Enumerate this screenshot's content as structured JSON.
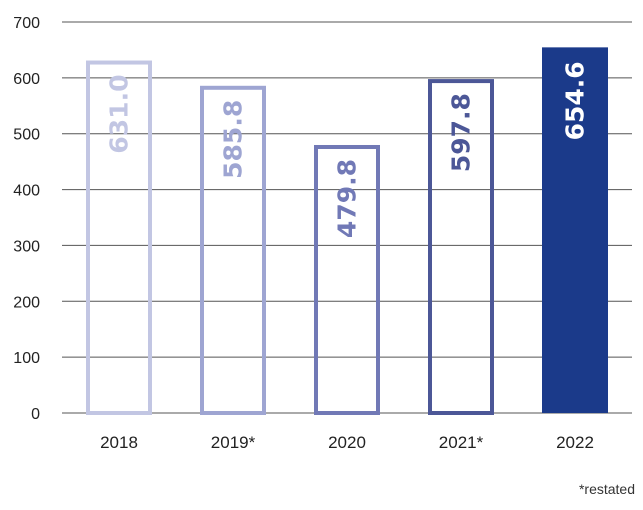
{
  "chart_data": {
    "type": "bar",
    "categories": [
      "2018",
      "2019*",
      "2020",
      "2021*",
      "2022"
    ],
    "values": [
      631.0,
      585.8,
      479.8,
      597.8,
      654.6
    ],
    "value_labels": [
      "631.0",
      "585.8",
      "479.8",
      "597.8",
      "654.6"
    ],
    "title": "",
    "xlabel": "",
    "ylabel": "",
    "ylim": [
      0,
      700
    ],
    "yticks": [
      0,
      100,
      200,
      300,
      400,
      500,
      600,
      700
    ],
    "grid": true,
    "bar_styles": [
      {
        "fill": "none",
        "color": "#c2c6e3"
      },
      {
        "fill": "none",
        "color": "#9ea5d2"
      },
      {
        "fill": "none",
        "color": "#7179b6"
      },
      {
        "fill": "none",
        "color": "#4c5797"
      },
      {
        "fill": "solid",
        "color": "#1b3a8a"
      }
    ],
    "value_label_colors": [
      "#c2c6e3",
      "#9ea5d2",
      "#7179b6",
      "#4c5797",
      "#ffffff"
    ]
  },
  "footnote": "*restated"
}
